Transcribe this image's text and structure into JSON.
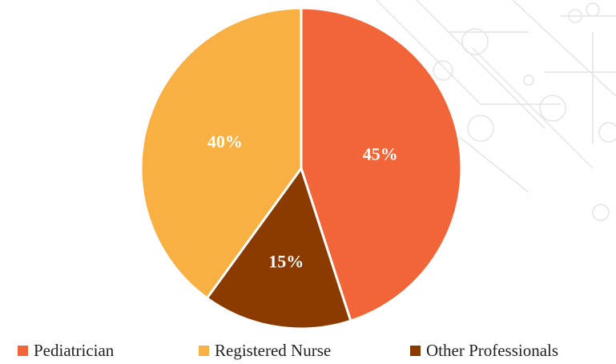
{
  "chart_data": {
    "type": "pie",
    "categories": [
      "Pediatrician",
      "Registered Nurse",
      "Other Professionals"
    ],
    "values": [
      45,
      40,
      15
    ],
    "value_labels": [
      "45%",
      "40%",
      "15%"
    ],
    "colors": [
      "#f26539",
      "#f9b042",
      "#8b3a00"
    ],
    "legend": "bottom"
  }
}
